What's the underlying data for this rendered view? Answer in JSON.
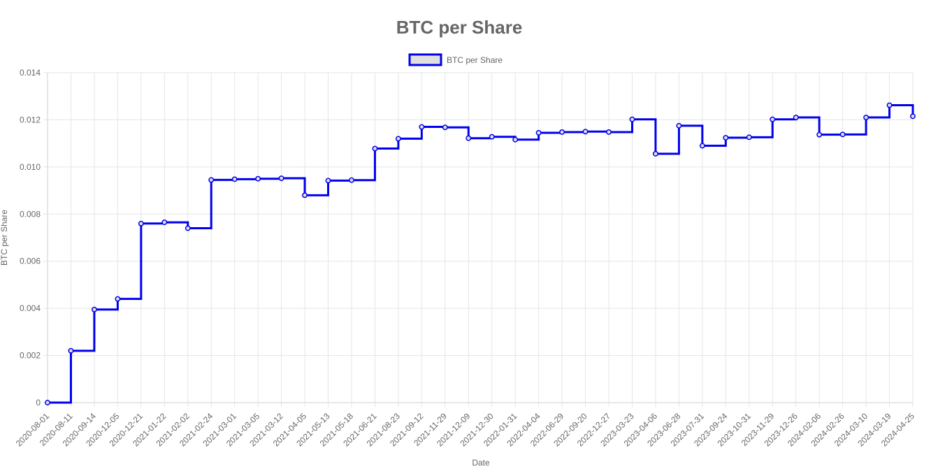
{
  "chart_data": {
    "type": "line",
    "step": true,
    "title": "BTC per Share",
    "xlabel": "Date",
    "ylabel": "BTC per Share",
    "ylim": [
      0,
      0.014
    ],
    "yticks": [
      "0",
      "0.002",
      "0.004",
      "0.006",
      "0.008",
      "0.010",
      "0.012",
      "0.014"
    ],
    "legend_position": "top-center",
    "grid": true,
    "categories": [
      "2020-08-01",
      "2020-08-11",
      "2020-09-14",
      "2020-12-05",
      "2020-12-21",
      "2021-01-22",
      "2021-02-02",
      "2021-02-24",
      "2021-03-01",
      "2021-03-05",
      "2021-03-12",
      "2021-04-05",
      "2021-05-13",
      "2021-05-18",
      "2021-06-21",
      "2021-08-23",
      "2021-09-12",
      "2021-11-29",
      "2021-12-09",
      "2021-12-30",
      "2022-01-31",
      "2022-04-04",
      "2022-06-29",
      "2022-09-20",
      "2022-12-27",
      "2023-03-23",
      "2023-04-06",
      "2023-06-28",
      "2023-07-31",
      "2023-09-24",
      "2023-10-31",
      "2023-11-29",
      "2023-12-26",
      "2024-02-06",
      "2024-02-26",
      "2024-03-10",
      "2024-03-19",
      "2024-04-25"
    ],
    "series": [
      {
        "name": "BTC per Share",
        "color": "#0000ee",
        "fill": "#e0e0e0",
        "values": [
          0,
          0.0022,
          0.00395,
          0.0044,
          0.0076,
          0.00765,
          0.0074,
          0.00945,
          0.00948,
          0.0095,
          0.00952,
          0.0088,
          0.00942,
          0.00944,
          0.01078,
          0.0112,
          0.0117,
          0.01168,
          0.01122,
          0.01128,
          0.01116,
          0.01145,
          0.01148,
          0.0115,
          0.01148,
          0.01202,
          0.01056,
          0.01175,
          0.0109,
          0.01124,
          0.01126,
          0.01202,
          0.0121,
          0.01137,
          0.01138,
          0.0121,
          0.01262,
          0.01215
        ]
      }
    ]
  }
}
